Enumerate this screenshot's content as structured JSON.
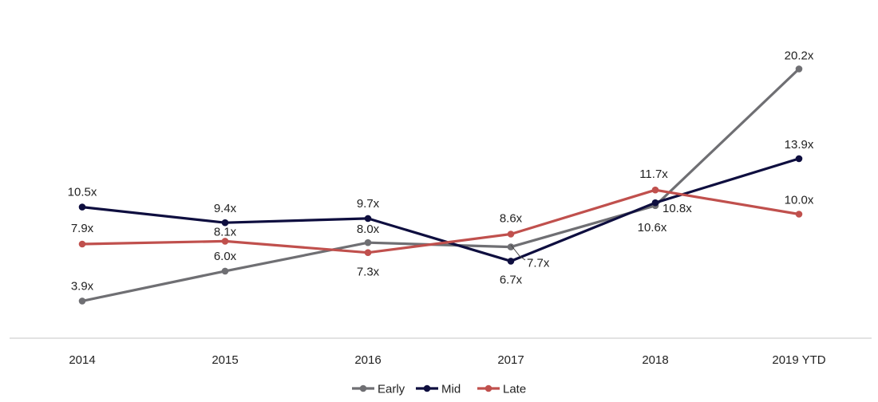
{
  "chart_data": {
    "type": "line",
    "title": "",
    "xlabel": "",
    "ylabel": "",
    "ylim": [
      0,
      22
    ],
    "grid": false,
    "legend_position": "bottom-center",
    "categories": [
      "2014",
      "2015",
      "2016",
      "2017",
      "2018",
      "2019 YTD"
    ],
    "series": [
      {
        "name": "Early",
        "color": "#6f6f73",
        "values": [
          3.9,
          6.0,
          8.0,
          7.7,
          10.6,
          20.2
        ],
        "labels": [
          "3.9x",
          "6.0x",
          "8.0x",
          "7.7x",
          "10.6x",
          "20.2x"
        ]
      },
      {
        "name": "Mid",
        "color": "#0e0e3f",
        "values": [
          10.5,
          9.4,
          9.7,
          6.7,
          10.8,
          13.9
        ],
        "labels": [
          "10.5x",
          "9.4x",
          "9.7x",
          "6.7x",
          "10.8x",
          "13.9x"
        ]
      },
      {
        "name": "Late",
        "color": "#c0504d",
        "values": [
          7.9,
          8.1,
          7.3,
          8.6,
          11.7,
          10.0
        ],
        "labels": [
          "7.9x",
          "8.1x",
          "7.3x",
          "8.6x",
          "11.7x",
          "10.0x"
        ]
      }
    ]
  }
}
